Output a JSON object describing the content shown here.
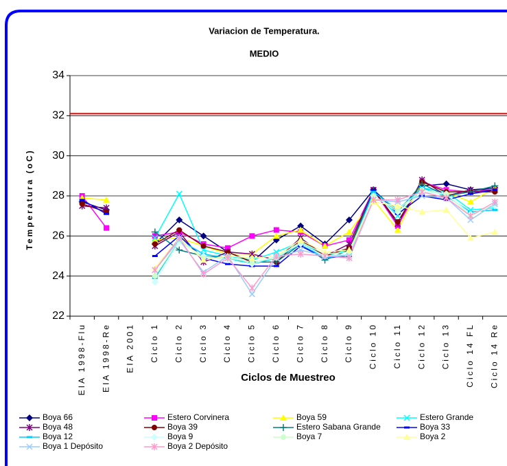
{
  "chart_data": {
    "type": "line",
    "title": "Variacion de Temperatura.",
    "subtitle": "MEDIO",
    "x_label": "Ciclos de Muestreo",
    "y_label": "Temperatura (oC)",
    "categories": [
      "EIA 1998-Flu",
      "EIA 1998-Re",
      "EIA 2001",
      "Ciclo 1",
      "Ciclo 2",
      "Ciclo 3",
      "Ciclo 4",
      "Ciclo 5",
      "Ciclo 6",
      "Ciclo 7",
      "Ciclo 8",
      "Ciclo 9",
      "Ciclo 10",
      "Ciclo 11",
      "Ciclo 12",
      "Ciclo 13",
      "Ciclo 14 FL",
      "Ciclo 14 Re"
    ],
    "ylim": [
      22,
      34
    ],
    "yticks": [
      22,
      24,
      26,
      28,
      30,
      32,
      34
    ],
    "grid": true,
    "reference_line": {
      "value": 32.1,
      "color": "#e00000"
    },
    "series": [
      {
        "name": "Boya 66",
        "color": "#000080",
        "marker": "diamond",
        "values": [
          27.7,
          27.3,
          null,
          25.6,
          26.8,
          26.0,
          25.2,
          24.7,
          25.8,
          26.5,
          25.6,
          26.8,
          28.3,
          27.2,
          28.5,
          28.6,
          28.3,
          28.4
        ]
      },
      {
        "name": "Estero Corvinera",
        "color": "#ff00ff",
        "marker": "square",
        "values": [
          28.0,
          26.4,
          null,
          26.0,
          26.2,
          25.6,
          25.4,
          26.0,
          26.3,
          26.2,
          25.5,
          25.8,
          28.3,
          26.5,
          28.7,
          28.3,
          28.2,
          28.3
        ]
      },
      {
        "name": "Boya 59",
        "color": "#ffff00",
        "marker": "triangle",
        "values": [
          27.9,
          27.8,
          null,
          25.8,
          25.9,
          25.5,
          25.1,
          25.1,
          26.0,
          26.3,
          25.5,
          26.2,
          27.8,
          26.3,
          28.7,
          28.2,
          27.7,
          28.4
        ]
      },
      {
        "name": "Estero Grande",
        "color": "#00ffff",
        "marker": "x",
        "values": [
          null,
          null,
          null,
          25.9,
          28.1,
          25.3,
          25.0,
          24.8,
          25.2,
          25.7,
          25.0,
          25.3,
          28.2,
          27.0,
          28.4,
          28.2,
          27.3,
          27.4
        ]
      },
      {
        "name": "Boya 48",
        "color": "#800080",
        "marker": "star",
        "values": [
          27.5,
          27.4,
          null,
          25.5,
          26.2,
          24.7,
          25.2,
          25.1,
          24.8,
          25.9,
          25.0,
          25.6,
          28.3,
          26.6,
          28.8,
          28.0,
          28.3,
          28.3
        ]
      },
      {
        "name": "Boya 39",
        "color": "#800000",
        "marker": "circle",
        "values": [
          27.6,
          27.2,
          null,
          25.6,
          26.3,
          25.5,
          25.2,
          24.7,
          24.7,
          25.8,
          25.0,
          25.4,
          28.3,
          26.7,
          28.7,
          28.2,
          28.2,
          28.2
        ]
      },
      {
        "name": "Estero Sabana Grande",
        "color": "#008080",
        "marker": "plus",
        "values": [
          null,
          null,
          null,
          26.2,
          25.3,
          25.0,
          24.9,
          24.7,
          24.7,
          25.6,
          24.8,
          25.3,
          28.3,
          27.2,
          28.6,
          28.0,
          28.2,
          28.5
        ]
      },
      {
        "name": "Boya 33",
        "color": "#0000ff",
        "marker": "dash",
        "values": [
          27.8,
          27.1,
          null,
          25.0,
          26.0,
          24.9,
          24.6,
          24.5,
          24.5,
          25.5,
          24.9,
          25.0,
          28.3,
          27.1,
          28.0,
          27.8,
          28.1,
          28.3
        ]
      },
      {
        "name": "Boya 12",
        "color": "#00ccff",
        "marker": "dash",
        "values": [
          null,
          null,
          null,
          23.9,
          25.8,
          25.1,
          24.9,
          24.6,
          24.9,
          25.6,
          24.9,
          25.1,
          28.2,
          27.3,
          28.4,
          28.0,
          27.2,
          27.3
        ]
      },
      {
        "name": "Boya 9",
        "color": "#ccffff",
        "marker": "diamond",
        "values": [
          null,
          null,
          null,
          23.7,
          25.7,
          25.0,
          24.8,
          24.6,
          25.0,
          25.6,
          25.0,
          25.1,
          28.0,
          27.2,
          28.2,
          28.1,
          27.1,
          27.5
        ]
      },
      {
        "name": "Boya 7",
        "color": "#ccffcc",
        "marker": "circle",
        "values": [
          null,
          null,
          null,
          24.0,
          25.8,
          24.9,
          24.9,
          24.7,
          24.9,
          25.7,
          25.1,
          25.2,
          28.0,
          27.3,
          28.3,
          28.1,
          27.0,
          27.6
        ]
      },
      {
        "name": "Boya 2",
        "color": "#ffff99",
        "marker": "triangle",
        "values": [
          null,
          null,
          null,
          24.4,
          25.9,
          24.8,
          25.0,
          24.9,
          25.0,
          25.8,
          25.2,
          25.3,
          27.7,
          27.5,
          27.2,
          27.3,
          25.9,
          26.2
        ]
      },
      {
        "name": "Boya 1 Depósito",
        "color": "#99ccff",
        "marker": "x",
        "values": [
          null,
          null,
          null,
          24.3,
          25.8,
          24.2,
          25.0,
          23.1,
          24.9,
          25.3,
          25.0,
          25.0,
          27.8,
          27.7,
          28.0,
          27.9,
          26.8,
          27.6
        ]
      },
      {
        "name": "Boya 2 Depósito",
        "color": "#ff99cc",
        "marker": "star",
        "values": [
          null,
          null,
          null,
          24.3,
          25.9,
          24.1,
          24.9,
          23.4,
          25.0,
          25.1,
          25.0,
          24.9,
          27.8,
          27.8,
          28.2,
          27.9,
          27.0,
          27.7
        ]
      }
    ]
  }
}
